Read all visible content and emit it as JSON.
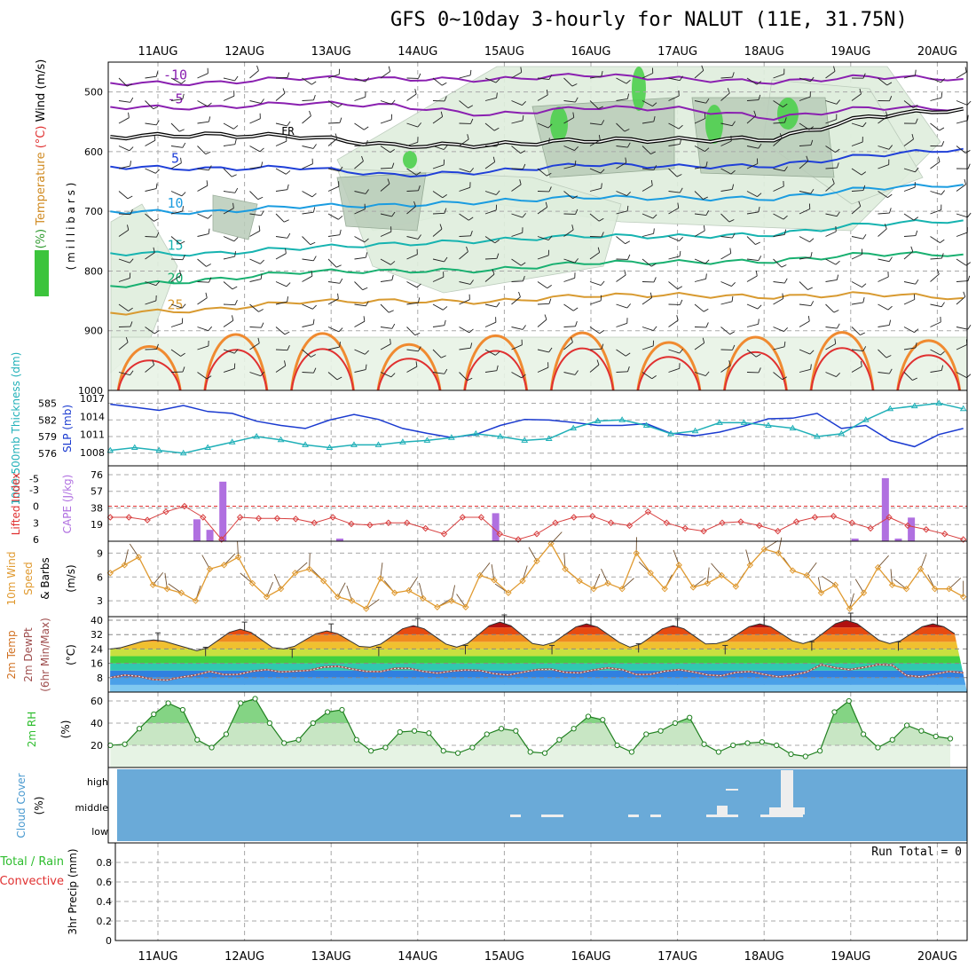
{
  "title": "GFS 0~10day 3-hourly for NALUT (11E, 31.75N)",
  "days": [
    "11AUG",
    "12AUG",
    "13AUG",
    "14AUG",
    "15AUG",
    "16AUG",
    "17AUG",
    "18AUG",
    "19AUG",
    "20AUG"
  ],
  "chart_data": [
    {
      "id": "upper-air",
      "type": "line",
      "ylabel_parts": [
        {
          "text": "RH (%)",
          "color": "#2e9a2e"
        },
        {
          "text": "Temperature",
          "color": "#d08a20"
        },
        {
          "text": "(°C)",
          "color": "#e03030"
        },
        {
          "text": "Wind (m/s)",
          "color": "#000000"
        }
      ],
      "yunit": "( m i l l i b a r s )",
      "ylim": [
        1000,
        450
      ],
      "yticks": [
        500,
        600,
        700,
        800,
        900,
        1000
      ],
      "isotherms": [
        {
          "label": "-10",
          "color": "#8a20b0",
          "level": [
            485,
            482,
            480,
            478,
            476,
            475,
            478,
            480,
            478,
            478
          ]
        },
        {
          "label": "-5",
          "color": "#8a20b0",
          "level": [
            525,
            523,
            522,
            523,
            535,
            530,
            528,
            540,
            530,
            528
          ]
        },
        {
          "label": "FR",
          "color": "#000000",
          "level": [
            575,
            568,
            578,
            590,
            585,
            585,
            580,
            575,
            545,
            528
          ]
        },
        {
          "label": "5",
          "color": "#1f3fd8",
          "level": [
            625,
            625,
            630,
            640,
            630,
            625,
            625,
            620,
            610,
            595
          ]
        },
        {
          "label": "10",
          "color": "#1a9ce0",
          "level": [
            700,
            698,
            695,
            690,
            680,
            680,
            678,
            675,
            665,
            655
          ]
        },
        {
          "label": "15",
          "color": "#16b3b0",
          "level": [
            770,
            768,
            765,
            755,
            745,
            745,
            742,
            735,
            725,
            715
          ]
        },
        {
          "label": "20",
          "color": "#18b070",
          "level": [
            825,
            812,
            805,
            800,
            795,
            790,
            785,
            780,
            775,
            772
          ]
        },
        {
          "label": "25",
          "color": "#d89a30",
          "level": [
            870,
            862,
            855,
            850,
            848,
            845,
            840,
            840,
            842,
            845
          ]
        }
      ]
    },
    {
      "id": "slp-thickness",
      "type": "line",
      "ylabel_left": "1000-500mb Thickness (dm)",
      "ylabel_right": "SLP (mb)",
      "thickness_ticks": [
        576,
        579,
        582,
        585
      ],
      "slp_ticks": [
        1008,
        1011,
        1014,
        1017
      ],
      "series": [
        {
          "name": "SLP",
          "color": "#1a3ad0",
          "axis": "slp",
          "values": [
            1016,
            1015.5,
            1015,
            1015.8,
            1014.8,
            1014.5,
            1013.2,
            1012.5,
            1012,
            1013.4,
            1014.3,
            1013.5,
            1012,
            1011.2,
            1010.5,
            1011,
            1012.5,
            1013.5,
            1013.4,
            1013,
            1012.5,
            1012.5,
            1012.8,
            1011.2,
            1010.8,
            1011.4,
            1012.4,
            1013.6,
            1013.7,
            1014.5,
            1012,
            1012.5,
            1010,
            1009,
            1011,
            1012
          ]
        },
        {
          "name": "Thickness",
          "color": "#20b0b8",
          "axis": "thk",
          "values": [
            576.5,
            577,
            576.5,
            576,
            577,
            578,
            579,
            578.4,
            577.5,
            577,
            577.5,
            577.5,
            578,
            578.3,
            578.8,
            579.5,
            579,
            578.3,
            578.6,
            580.5,
            581.8,
            582,
            581,
            579.5,
            580,
            581.5,
            581.5,
            581,
            580.5,
            579,
            579.5,
            582,
            584,
            584.5,
            585,
            584
          ]
        }
      ]
    },
    {
      "id": "li-cape",
      "type": "bar",
      "ylabel_left": "Lifted Index",
      "ylabel_right": "CAPE (J/kg)",
      "li_ticks": [
        "-5",
        "-3",
        "0",
        "3",
        "6"
      ],
      "cape_ticks": [
        "76",
        "57",
        "38",
        "19"
      ],
      "cape_bars": [
        {
          "day": 0.45,
          "value": 25
        },
        {
          "day": 0.6,
          "value": 13
        },
        {
          "day": 0.75,
          "value": 68
        },
        {
          "day": 2.1,
          "value": 3
        },
        {
          "day": 3.9,
          "value": 32
        },
        {
          "day": 8.05,
          "value": 3
        },
        {
          "day": 8.4,
          "value": 72
        },
        {
          "day": 8.55,
          "value": 3
        },
        {
          "day": 8.7,
          "value": 27
        }
      ],
      "lifted_index": [
        2,
        2,
        2.5,
        1,
        0,
        2,
        6,
        2,
        2.2,
        2.2,
        2.3,
        3,
        2,
        3.2,
        3.4,
        3,
        3,
        4,
        5,
        2,
        2,
        5,
        6,
        5,
        3,
        2,
        1.8,
        3,
        3.5,
        1,
        3,
        4,
        4.5,
        3,
        2.8,
        3.5,
        4.5,
        2.8,
        2,
        1.8,
        3,
        4,
        2,
        3.5,
        4.2,
        5,
        6
      ]
    },
    {
      "id": "wind10m",
      "type": "line",
      "ylabel_left": "10m Wind Speed & Barbs",
      "yunit": "(m/s)",
      "ylim": [
        1,
        10.5
      ],
      "yticks": [
        3,
        6,
        9
      ],
      "series": [
        {
          "name": "Wind Speed",
          "color": "#e09a30",
          "values": [
            6.5,
            7.5,
            8.5,
            5,
            4.5,
            4,
            3,
            7,
            7.5,
            8.5,
            5.2,
            3.5,
            4.5,
            6.5,
            7,
            5.5,
            3.5,
            3,
            2,
            5.8,
            4,
            4.3,
            3.3,
            2.2,
            3,
            2.2,
            6.2,
            5.6,
            4,
            5.5,
            8,
            10.2,
            7,
            5.5,
            4.5,
            5.2,
            4.5,
            9,
            6.5,
            4.5,
            7.5,
            4.7,
            5.2,
            6.2,
            4.8,
            7.5,
            9.5,
            9,
            6.8,
            6.2,
            4,
            5,
            2,
            4,
            7.2,
            5,
            4.5,
            7,
            4.5,
            4.5,
            3.5
          ]
        }
      ]
    },
    {
      "id": "temp2m",
      "type": "area",
      "ylabel_left": "2m Temp 2m DewPt (6hr Min/Max) (°C)",
      "ylim": [
        0,
        42
      ],
      "yticks": [
        8,
        16,
        24,
        32,
        40
      ],
      "tmax": [
        29,
        35,
        34,
        37,
        39,
        38,
        37,
        38,
        40,
        38
      ],
      "tmin": [
        24,
        23,
        24,
        25,
        25,
        26,
        25,
        27,
        27,
        27
      ],
      "dew": [
        8,
        11,
        13,
        12,
        11,
        12,
        11,
        10,
        14,
        10
      ]
    },
    {
      "id": "rh2m",
      "type": "area",
      "ylabel_left": "2m RH",
      "yunit": "(%)",
      "ylim": [
        0,
        68
      ],
      "yticks": [
        20,
        40,
        60
      ],
      "values": [
        20,
        21,
        35,
        48,
        58,
        52,
        25,
        18,
        30,
        58,
        62,
        40,
        22,
        25,
        40,
        50,
        52,
        25,
        15,
        18,
        32,
        33,
        31,
        15,
        13,
        18,
        30,
        35,
        33,
        14,
        13,
        25,
        35,
        46,
        43,
        20,
        14,
        30,
        33,
        40,
        45,
        21,
        14,
        20,
        22,
        23,
        20,
        12,
        10,
        15,
        50,
        60,
        30,
        18,
        25,
        38,
        33,
        28,
        26
      ]
    },
    {
      "id": "cloud",
      "type": "heatmap",
      "ylabel_left": "Cloud Cover",
      "yunit": "(%)",
      "levels": [
        "high",
        "middle",
        "low"
      ]
    },
    {
      "id": "precip",
      "type": "bar",
      "ylabel_left_parts": [
        {
          "text": "Total / Rain",
          "color": "#2ebd2e"
        },
        {
          "text": "Convective",
          "color": "#e03030"
        },
        {
          "text": "3hr Precip (mm)",
          "color": "#000000"
        }
      ],
      "ylim": [
        0,
        1.0
      ],
      "yticks": [
        "0",
        "0.2",
        "0.4",
        "0.6",
        "0.8"
      ],
      "run_total": "Run Total = 0"
    }
  ]
}
